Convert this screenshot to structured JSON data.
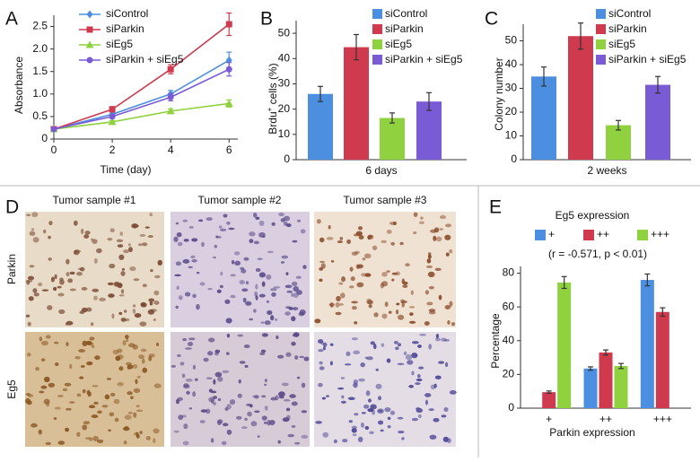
{
  "chart_data": [
    {
      "type": "line",
      "panel_label": "A",
      "x_label": "Time (day)",
      "y_label": "Absorbance",
      "x": [
        0,
        2,
        4,
        6
      ],
      "xlim": [
        0,
        6.3
      ],
      "xticks": [
        0,
        2,
        4,
        6
      ],
      "ylim": [
        0,
        2.75
      ],
      "yticks": [
        0,
        0.5,
        {
          "value": 1,
          "label": "1.0"
        },
        1.5,
        {
          "value": 2,
          "label": "2.0"
        },
        2.5
      ],
      "series": [
        {
          "name": "siControl",
          "color": "#4c8fe0",
          "marker": "diamond",
          "values": [
            0.22,
            0.55,
            1.0,
            1.75
          ],
          "errors": [
            0.02,
            0.05,
            0.08,
            0.18
          ]
        },
        {
          "name": "siParkin",
          "color": "#cf3a4e",
          "marker": "square",
          "values": [
            0.22,
            0.66,
            1.55,
            2.55
          ],
          "errors": [
            0.02,
            0.06,
            0.1,
            0.25
          ]
        },
        {
          "name": "siEg5",
          "color": "#8fd13f",
          "marker": "triangle",
          "values": [
            0.22,
            0.38,
            0.62,
            0.79
          ],
          "errors": [
            0.02,
            0.03,
            0.05,
            0.08
          ]
        },
        {
          "name": "siParkin + siEg5",
          "color": "#7a5bd6",
          "marker": "circle",
          "values": [
            0.22,
            0.5,
            0.93,
            1.55
          ],
          "errors": [
            0.02,
            0.04,
            0.08,
            0.15
          ]
        }
      ]
    },
    {
      "type": "bar",
      "panel_label": "B",
      "y_label": [
        "Brdu",
        "+",
        " cells (%)"
      ],
      "categories": [
        "6 days"
      ],
      "ylim": [
        0,
        55
      ],
      "yticks": [
        0,
        10,
        20,
        30,
        40,
        50
      ],
      "series": [
        {
          "name": "siControl",
          "color": "#4c8fe0",
          "values": [
            26
          ],
          "errors": [
            3
          ]
        },
        {
          "name": "siParkin",
          "color": "#cf3a4e",
          "values": [
            44.5
          ],
          "errors": [
            5
          ]
        },
        {
          "name": "siEg5",
          "color": "#8fd13f",
          "values": [
            16.5
          ],
          "errors": [
            2
          ]
        },
        {
          "name": "siParkin + siEg5",
          "color": "#7a5bd6",
          "values": [
            23
          ],
          "errors": [
            3.5
          ]
        }
      ]
    },
    {
      "type": "bar",
      "panel_label": "C",
      "y_label": "Colony number",
      "categories": [
        "2 weeks"
      ],
      "ylim": [
        0,
        57
      ],
      "yticks": [
        0,
        10,
        20,
        30,
        40,
        50
      ],
      "series": [
        {
          "name": "siControl",
          "color": "#4c8fe0",
          "values": [
            35
          ],
          "errors": [
            4
          ]
        },
        {
          "name": "siParkin",
          "color": "#cf3a4e",
          "values": [
            52
          ],
          "errors": [
            5.5
          ]
        },
        {
          "name": "siEg5",
          "color": "#8fd13f",
          "values": [
            14.5
          ],
          "errors": [
            2
          ]
        },
        {
          "name": "siParkin + siEg5",
          "color": "#7a5bd6",
          "values": [
            31.5
          ],
          "errors": [
            3.5
          ]
        }
      ]
    },
    {
      "type": "bar",
      "panel_label": "E",
      "legend_title": "Eg5 expression",
      "annotation": "(r = -0.571, p < 0.01)",
      "x_label": "Parkin expression",
      "y_label": "Percentage",
      "categories": [
        "+",
        "++",
        "+++"
      ],
      "ylim": [
        0,
        84
      ],
      "yticks": [
        0,
        20,
        40,
        60,
        80
      ],
      "series": [
        {
          "name": "+",
          "color": "#4c8fe0",
          "values": [
            null,
            23.5,
            76
          ],
          "errors": [
            null,
            1,
            3.5
          ]
        },
        {
          "name": "++",
          "color": "#cf3a4e",
          "values": [
            9.5,
            33,
            57
          ],
          "errors": [
            0.7,
            1.5,
            2.5
          ]
        },
        {
          "name": "+++",
          "color": "#8fd13f",
          "values": [
            74.5,
            25,
            null
          ],
          "errors": [
            3.5,
            1.5,
            null
          ]
        }
      ]
    }
  ],
  "image_panel": {
    "panel_label": "D",
    "columns": [
      "Tumor sample #1",
      "Tumor sample #2",
      "Tumor sample #3"
    ],
    "rows": [
      "Parkin",
      "Eg5"
    ]
  }
}
